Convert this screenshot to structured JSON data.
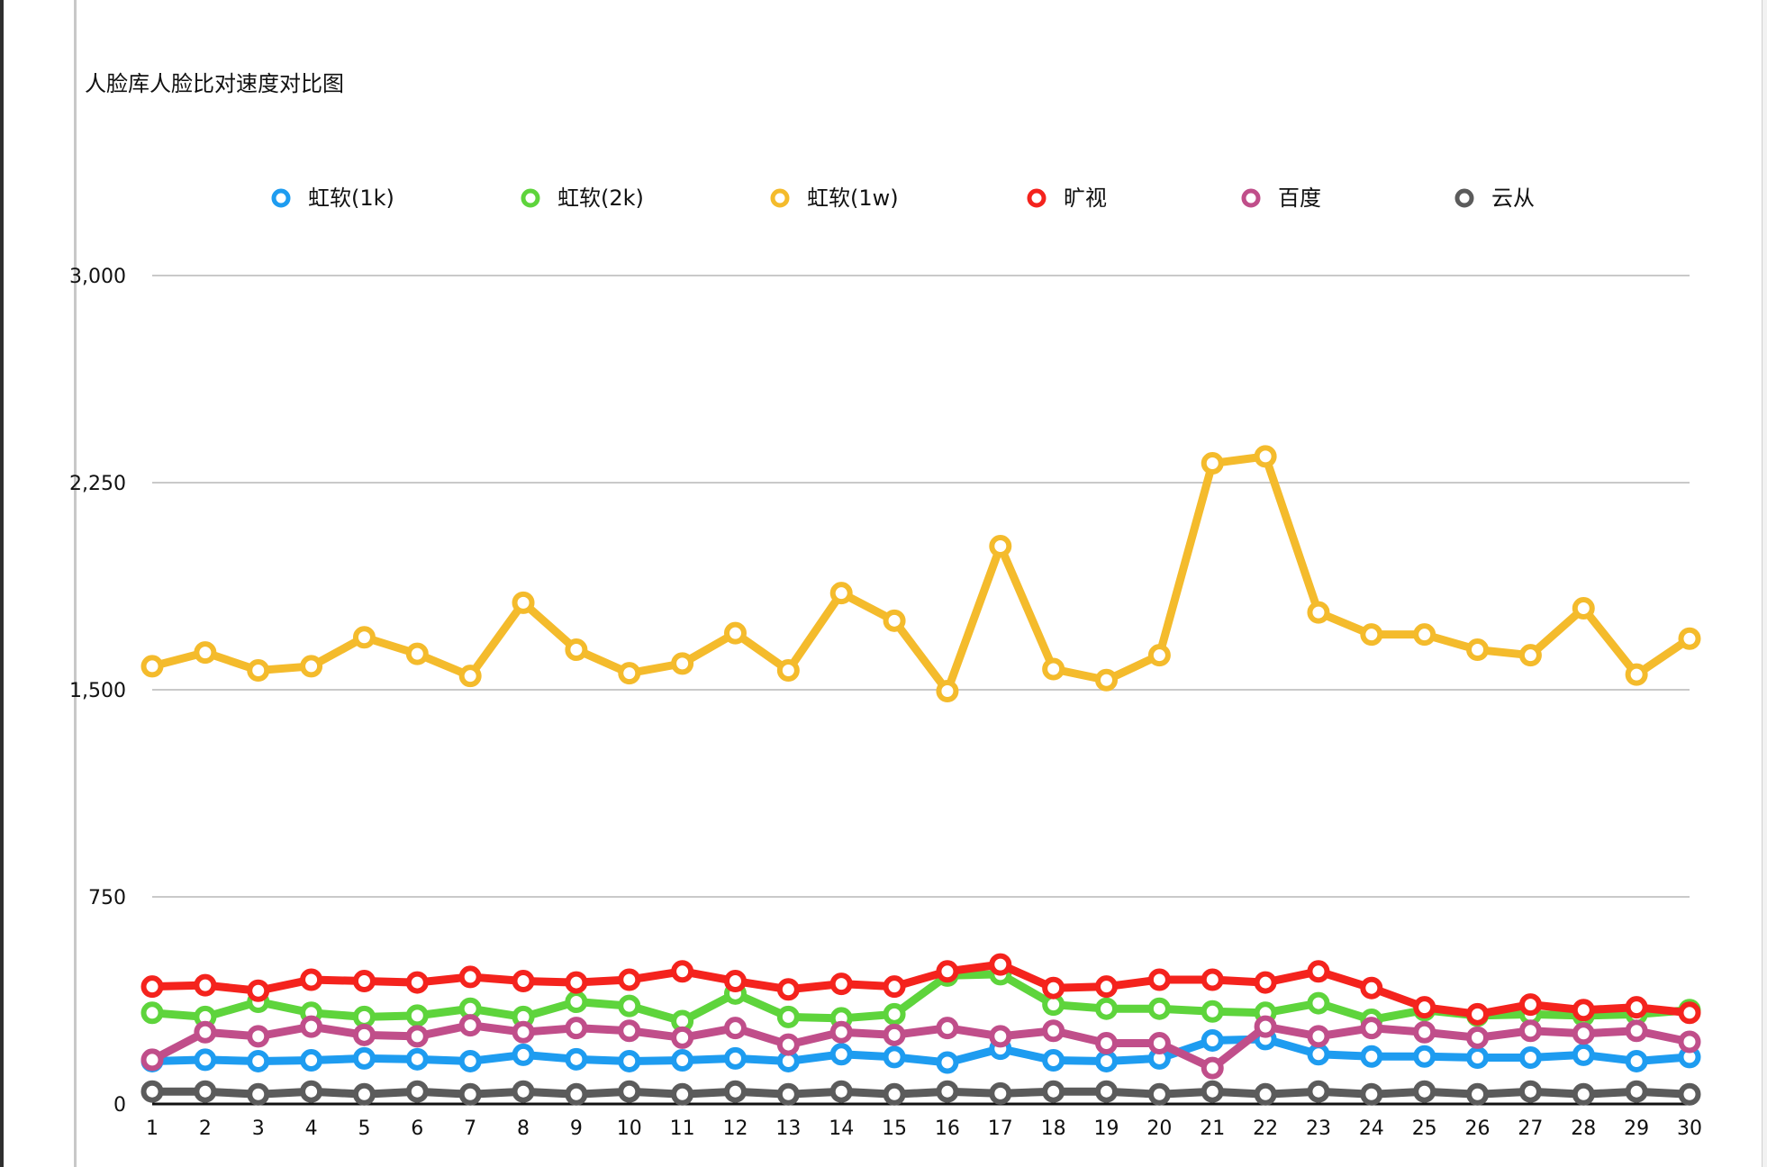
{
  "chart_data": {
    "type": "line",
    "title": "人脸库人脸比对速度对比图",
    "xlabel": "",
    "ylabel": "",
    "x": [
      1,
      2,
      3,
      4,
      5,
      6,
      7,
      8,
      9,
      10,
      11,
      12,
      13,
      14,
      15,
      16,
      17,
      18,
      19,
      20,
      21,
      22,
      23,
      24,
      25,
      26,
      27,
      28,
      29,
      30
    ],
    "x_tick_labels": [
      "1",
      "2",
      "3",
      "4",
      "5",
      "6",
      "7",
      "8",
      "9",
      "10",
      "11",
      "12",
      "13",
      "14",
      "15",
      "16",
      "17",
      "18",
      "19",
      "20",
      "21",
      "22",
      "23",
      "24",
      "25",
      "26",
      "27",
      "28",
      "29",
      "30"
    ],
    "y_ticks": [
      0,
      750,
      1500,
      2250,
      3000
    ],
    "y_tick_labels": [
      "0",
      "750",
      "1,500",
      "2,250",
      "3,000"
    ],
    "ylim": [
      0,
      3000
    ],
    "grid": true,
    "legend_position": "top",
    "series": [
      {
        "name": "虹软(1k)",
        "color": "#1e9cf0",
        "values": [
          155,
          160,
          155,
          158,
          165,
          162,
          155,
          178,
          162,
          155,
          158,
          165,
          155,
          180,
          170,
          150,
          200,
          158,
          155,
          165,
          230,
          235,
          180,
          172,
          172,
          168,
          168,
          178,
          155,
          170
        ]
      },
      {
        "name": "虹软(2k)",
        "color": "#5ed43c",
        "values": [
          330,
          315,
          370,
          330,
          315,
          320,
          345,
          315,
          370,
          355,
          300,
          400,
          315,
          310,
          325,
          465,
          470,
          360,
          345,
          345,
          335,
          330,
          365,
          305,
          340,
          320,
          325,
          320,
          325,
          340
        ]
      },
      {
        "name": "虹软(1w)",
        "color": "#f4bb2c",
        "values": [
          1585,
          1635,
          1570,
          1585,
          1690,
          1630,
          1550,
          1815,
          1645,
          1560,
          1595,
          1705,
          1570,
          1850,
          1750,
          1495,
          2020,
          1575,
          1535,
          1625,
          2320,
          2345,
          1780,
          1700,
          1700,
          1645,
          1625,
          1795,
          1555,
          1685
        ]
      },
      {
        "name": "旷视",
        "color": "#f4231d",
        "values": [
          425,
          430,
          410,
          450,
          445,
          440,
          460,
          445,
          440,
          450,
          480,
          445,
          415,
          435,
          425,
          480,
          505,
          420,
          425,
          450,
          450,
          440,
          480,
          420,
          350,
          325,
          360,
          340,
          350,
          330
        ]
      },
      {
        "name": "百度",
        "color": "#c04e8a",
        "values": [
          160,
          260,
          245,
          280,
          250,
          245,
          285,
          260,
          275,
          265,
          240,
          275,
          215,
          260,
          250,
          275,
          245,
          265,
          220,
          220,
          130,
          280,
          245,
          275,
          260,
          240,
          265,
          255,
          265,
          225
        ]
      },
      {
        "name": "云从",
        "color": "#5b5b5b",
        "values": [
          45,
          45,
          35,
          45,
          35,
          45,
          35,
          45,
          35,
          45,
          35,
          45,
          35,
          45,
          35,
          45,
          38,
          45,
          45,
          35,
          45,
          35,
          45,
          35,
          45,
          35,
          45,
          35,
          45,
          35
        ]
      }
    ]
  }
}
